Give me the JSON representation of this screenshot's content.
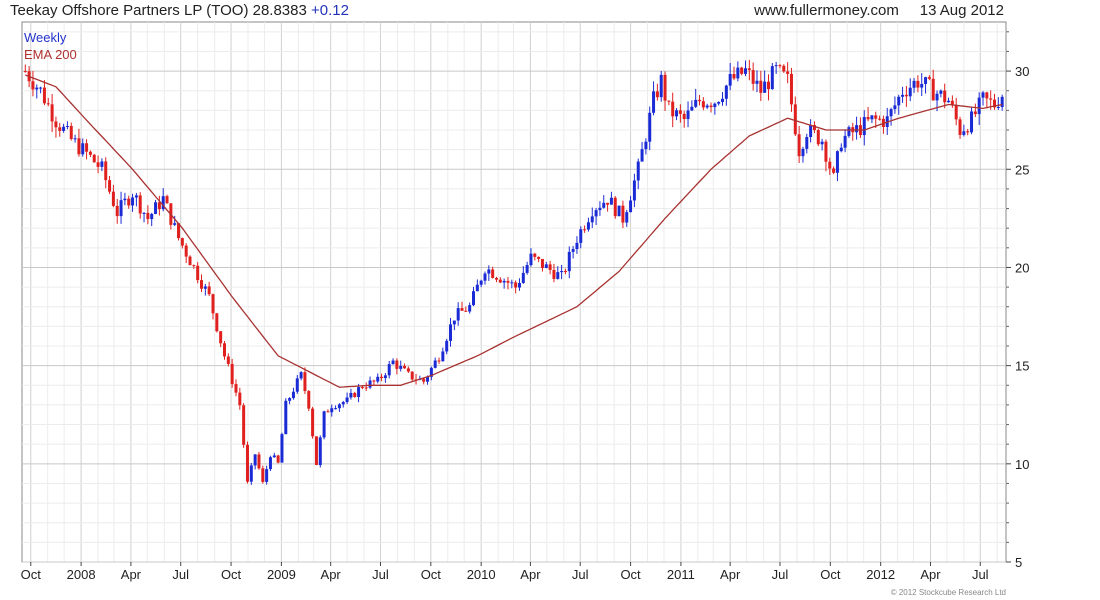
{
  "header": {
    "title": "Teekay Offshore Partners LP (TOO)",
    "price": "28.8383",
    "change": "+0.12",
    "site": "www.fullermoney.com",
    "date": "13 Aug 2012"
  },
  "watermark": "© 2012 Stockcube Research Ltd",
  "chart_data": {
    "type": "candlestick",
    "title": "Teekay Offshore Partners LP (TOO)",
    "legend": [
      "Weekly",
      "EMA 200"
    ],
    "legend_position": "top-left",
    "grid": true,
    "y_axis_side": "right",
    "ylim": [
      5,
      32.5
    ],
    "yticks": [
      5,
      10,
      15,
      20,
      25,
      30
    ],
    "xticks": [
      "Oct",
      "2008",
      "Apr",
      "Jul",
      "Oct",
      "2009",
      "Apr",
      "Jul",
      "Oct",
      "2010",
      "Apr",
      "Jul",
      "Oct",
      "2011",
      "Apr",
      "Jul",
      "Oct",
      "2012",
      "Apr",
      "Jul"
    ],
    "x_range": [
      "2007-09-15",
      "2012-08-17"
    ],
    "colors": {
      "up": "#1a2bd6",
      "down": "#e0201e",
      "ema": "#a83232",
      "grid": "#d9d9d9"
    },
    "weekly_close": [
      [
        "2007-09-21",
        30.0
      ],
      [
        "2007-10-19",
        29.0
      ],
      [
        "2007-11-16",
        27.5
      ],
      [
        "2007-12-14",
        26.5
      ],
      [
        "2008-01-11",
        25.8
      ],
      [
        "2008-02-08",
        25.0
      ],
      [
        "2008-03-07",
        22.8
      ],
      [
        "2008-04-04",
        23.8
      ],
      [
        "2008-05-02",
        22.5
      ],
      [
        "2008-05-30",
        23.5
      ],
      [
        "2008-06-27",
        21.5
      ],
      [
        "2008-07-25",
        20.0
      ],
      [
        "2008-08-22",
        18.5
      ],
      [
        "2008-09-19",
        15.5
      ],
      [
        "2008-10-17",
        13.0
      ],
      [
        "2008-10-31",
        9.0
      ],
      [
        "2008-11-14",
        10.5
      ],
      [
        "2008-11-28",
        9.0
      ],
      [
        "2008-12-12",
        10.5
      ],
      [
        "2008-12-26",
        10.0
      ],
      [
        "2009-01-09",
        13.0
      ],
      [
        "2009-01-23",
        13.8
      ],
      [
        "2009-02-06",
        14.5
      ],
      [
        "2009-02-20",
        13.0
      ],
      [
        "2009-03-06",
        10.0
      ],
      [
        "2009-03-20",
        12.5
      ],
      [
        "2009-04-03",
        13.0
      ],
      [
        "2009-05-01",
        13.2
      ],
      [
        "2009-05-29",
        14.0
      ],
      [
        "2009-06-26",
        14.2
      ],
      [
        "2009-07-24",
        15.2
      ],
      [
        "2009-08-21",
        14.5
      ],
      [
        "2009-09-18",
        14.2
      ],
      [
        "2009-10-16",
        15.5
      ],
      [
        "2009-11-13",
        17.5
      ],
      [
        "2009-12-11",
        18.0
      ],
      [
        "2010-01-08",
        20.0
      ],
      [
        "2010-02-05",
        19.5
      ],
      [
        "2010-03-05",
        19.0
      ],
      [
        "2010-04-02",
        20.5
      ],
      [
        "2010-04-30",
        20.0
      ],
      [
        "2010-05-28",
        19.5
      ],
      [
        "2010-06-25",
        21.5
      ],
      [
        "2010-07-23",
        23.0
      ],
      [
        "2010-08-20",
        23.5
      ],
      [
        "2010-09-17",
        22.5
      ],
      [
        "2010-10-15",
        25.0
      ],
      [
        "2010-11-12",
        28.5
      ],
      [
        "2010-11-26",
        29.5
      ],
      [
        "2010-12-10",
        28.0
      ],
      [
        "2011-01-07",
        27.5
      ],
      [
        "2011-02-04",
        28.5
      ],
      [
        "2011-03-04",
        28.5
      ],
      [
        "2011-04-01",
        29.5
      ],
      [
        "2011-04-29",
        30.0
      ],
      [
        "2011-05-27",
        29.0
      ],
      [
        "2011-06-24",
        30.0
      ],
      [
        "2011-07-15",
        29.5
      ],
      [
        "2011-08-05",
        26.0
      ],
      [
        "2011-08-19",
        27.0
      ],
      [
        "2011-09-16",
        26.5
      ],
      [
        "2011-10-07",
        24.5
      ],
      [
        "2011-10-21",
        26.5
      ],
      [
        "2011-11-18",
        27.0
      ],
      [
        "2011-12-16",
        27.5
      ],
      [
        "2012-01-13",
        27.5
      ],
      [
        "2012-02-10",
        29.0
      ],
      [
        "2012-03-09",
        29.5
      ],
      [
        "2012-04-06",
        29.0
      ],
      [
        "2012-05-04",
        28.5
      ],
      [
        "2012-05-25",
        27.0
      ],
      [
        "2012-06-15",
        27.5
      ],
      [
        "2012-07-06",
        28.5
      ],
      [
        "2012-07-27",
        28.3
      ],
      [
        "2012-08-10",
        28.84
      ]
    ],
    "ema_200": [
      [
        "2007-09-21",
        29.8
      ],
      [
        "2007-11-16",
        29.2
      ],
      [
        "2008-01-11",
        27.5
      ],
      [
        "2008-04-04",
        25.0
      ],
      [
        "2008-07-04",
        22.0
      ],
      [
        "2008-10-03",
        18.5
      ],
      [
        "2008-12-26",
        15.5
      ],
      [
        "2009-03-06",
        14.5
      ],
      [
        "2009-04-17",
        13.9
      ],
      [
        "2009-06-12",
        14.0
      ],
      [
        "2009-08-07",
        14.0
      ],
      [
        "2009-10-02",
        14.5
      ],
      [
        "2009-12-25",
        15.5
      ],
      [
        "2010-03-05",
        16.5
      ],
      [
        "2010-06-25",
        18.0
      ],
      [
        "2010-09-10",
        19.8
      ],
      [
        "2010-12-03",
        22.5
      ],
      [
        "2011-02-25",
        25.0
      ],
      [
        "2011-05-06",
        26.7
      ],
      [
        "2011-07-15",
        27.6
      ],
      [
        "2011-09-23",
        27.0
      ],
      [
        "2011-12-02",
        27.0
      ],
      [
        "2012-02-03",
        27.6
      ],
      [
        "2012-05-04",
        28.3
      ],
      [
        "2012-07-06",
        28.1
      ],
      [
        "2012-08-10",
        28.3
      ]
    ]
  }
}
